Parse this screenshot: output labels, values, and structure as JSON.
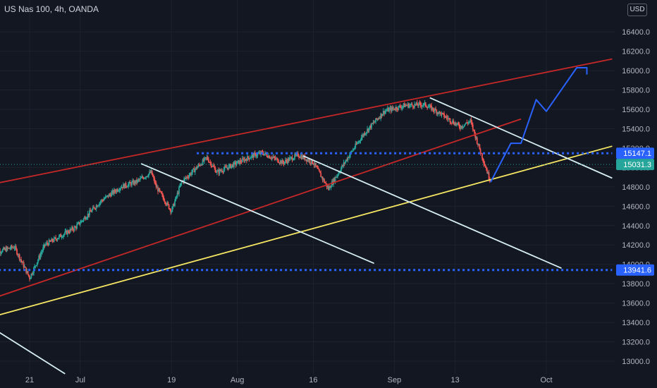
{
  "header": {
    "title": "US Nas 100, 4h, OANDA",
    "currency": "USD"
  },
  "colors": {
    "background": "#131722",
    "grid": "#1e222d",
    "text": "#b2b5be",
    "up": "#26a69a",
    "down": "#ef5350",
    "red_line": "#c62828",
    "yellow_line": "#f5e663",
    "white_line": "#d6eef3",
    "blue_level": "#2962ff",
    "blue_path": "#2962ff"
  },
  "chart_data": {
    "type": "candlestick",
    "title": "US Nas 100, 4h, OANDA",
    "price_axis": {
      "unit": "USD",
      "ticks": [
        13000,
        13200,
        13400,
        13600,
        13800,
        14000,
        14200,
        14400,
        14600,
        14800,
        15000,
        15200,
        15400,
        15600,
        15800,
        16000,
        16200,
        16400
      ],
      "tick_labels": [
        "13000.0",
        "13200.0",
        "13400.0",
        "13600.0",
        "13800.0",
        "14000.0",
        "14200.0",
        "14400.0",
        "14600.0",
        "14800.0",
        "15000.0",
        "15200.0",
        "15400.0",
        "15600.0",
        "15800.0",
        "16000.0",
        "16200.0",
        "16400.0"
      ],
      "range": [
        12940,
        16640
      ]
    },
    "time_axis": {
      "labels": [
        "21",
        "Jul",
        "19",
        "Aug",
        "16",
        "Sep",
        "13",
        "Oct"
      ],
      "dates": [
        "2021-06-21",
        "2021-07-01",
        "2021-07-19",
        "2021-08-01",
        "2021-08-16",
        "2021-09-01",
        "2021-09-13",
        "2021-10-01"
      ]
    },
    "price_labels": [
      {
        "text": "15147.1",
        "value": 15147.1,
        "style": "blue"
      },
      {
        "text": "15031.3",
        "value": 15031.3,
        "style": "green"
      },
      {
        "text": "13941.6",
        "value": 13941.6,
        "style": "blue"
      }
    ],
    "last_price": 15031.3,
    "price_path": [
      [
        "2021-06-14",
        14120
      ],
      [
        "2021-06-18",
        14180
      ],
      [
        "2021-06-21",
        13860
      ],
      [
        "2021-06-24",
        14200
      ],
      [
        "2021-06-30",
        14380
      ],
      [
        "2021-07-05",
        14650
      ],
      [
        "2021-07-09",
        14800
      ],
      [
        "2021-07-12",
        14850
      ],
      [
        "2021-07-15",
        14950
      ],
      [
        "2021-07-16",
        14800
      ],
      [
        "2021-07-19",
        14550
      ],
      [
        "2021-07-21",
        14850
      ],
      [
        "2021-07-26",
        15100
      ],
      [
        "2021-07-28",
        14950
      ],
      [
        "2021-07-30",
        15000
      ],
      [
        "2021-08-04",
        15120
      ],
      [
        "2021-08-06",
        15150
      ],
      [
        "2021-08-10",
        15050
      ],
      [
        "2021-08-13",
        15130
      ],
      [
        "2021-08-16",
        15050
      ],
      [
        "2021-08-19",
        14780
      ],
      [
        "2021-08-23",
        15120
      ],
      [
        "2021-08-26",
        15350
      ],
      [
        "2021-08-30",
        15580
      ],
      [
        "2021-09-03",
        15640
      ],
      [
        "2021-09-07",
        15650
      ],
      [
        "2021-09-10",
        15560
      ],
      [
        "2021-09-14",
        15420
      ],
      [
        "2021-09-16",
        15480
      ],
      [
        "2021-09-20",
        14850
      ]
    ],
    "lines": [
      {
        "kind": "channel-top",
        "color": "red",
        "from": [
          "2021-06-11",
          14800
        ],
        "to": [
          "2021-10-14",
          16120
        ]
      },
      {
        "kind": "channel-bottom",
        "color": "red",
        "from": [
          "2021-06-11",
          13600
        ],
        "to": [
          "2021-09-26",
          15500
        ]
      },
      {
        "kind": "trendline",
        "color": "yellow",
        "from": [
          "2021-06-11",
          13420
        ],
        "to": [
          "2021-10-14",
          15220
        ]
      },
      {
        "kind": "downtrend",
        "color": "white",
        "from": [
          "2021-07-13",
          15040
        ],
        "to": [
          "2021-08-28",
          14010
        ]
      },
      {
        "kind": "downtrend",
        "color": "white",
        "from": [
          "2021-08-14",
          15120
        ],
        "to": [
          "2021-10-04",
          13960
        ]
      },
      {
        "kind": "downtrend",
        "color": "white",
        "from": [
          "2021-09-08",
          15720
        ],
        "to": [
          "2021-10-14",
          14890
        ]
      },
      {
        "kind": "downtrend",
        "color": "white",
        "from": [
          "2021-06-11",
          13430
        ],
        "to": [
          "2021-06-28",
          12870
        ]
      }
    ],
    "levels": [
      {
        "value": 15147.1,
        "from": "2021-07-24",
        "to": "2021-10-14"
      },
      {
        "value": 13941.6,
        "from": "2021-06-11",
        "to": "2021-10-14"
      }
    ],
    "projection": [
      [
        "2021-09-20",
        14850
      ],
      [
        "2021-09-24",
        15250
      ],
      [
        "2021-09-26",
        15250
      ],
      [
        "2021-09-29",
        15700
      ],
      [
        "2021-10-01",
        15580
      ],
      [
        "2021-10-07",
        16030
      ],
      [
        "2021-10-09",
        16030
      ],
      [
        "2021-10-09",
        15960
      ]
    ]
  }
}
